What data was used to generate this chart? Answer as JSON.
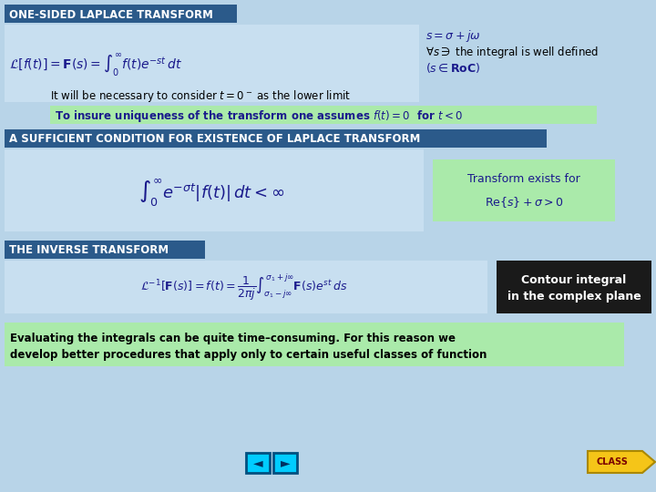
{
  "bg_color": "#b8d4e8",
  "slide_bg": "#b8d4e8",
  "section1_title": "ONE-SIDED LAPLACE TRANSFORM",
  "section1_title_bg": "#2b5a8a",
  "section1_title_color": "#ffffff",
  "section1_title_fontsize": 8.5,
  "formula1_latex": "$\\mathcal{L}[f(t)] = \\mathbf{F}(s) = \\int_0^{\\infty} f(t)e^{-st}\\, dt$",
  "formula1_box_bg": "#c8dff0",
  "formula1_side_line1": "$s = \\sigma + j\\omega$",
  "formula1_side_line2": "$\\forall s \\ni$ the integral is well defined",
  "formula1_side_line3": "$(s \\in \\mathbf{RoC})$",
  "note1": "It will be necessary to consider $t = 0^-$ as the lower limit",
  "note2_bg": "#aaeaaa",
  "note2_text": "To insure uniqueness of the transform one assumes $f(t) = 0$  for $t < 0$",
  "section2_title": "A SUFFICIENT CONDITION FOR EXISTENCE OF LAPLACE TRANSFORM",
  "section2_title_bg": "#2b5a8a",
  "section2_title_color": "#ffffff",
  "section2_title_fontsize": 8.5,
  "formula2_latex": "$\\int_0^{\\infty} e^{-\\sigma t}|f(t)|\\, dt < \\infty$",
  "formula2_box_bg": "#c8dff0",
  "formula2_side_bg": "#aaeaaa",
  "formula2_side_line1": "Transform exists for",
  "formula2_side_line2": "$\\mathrm{Re}\\{s\\}+\\sigma>0$",
  "section3_title": "THE INVERSE TRANSFORM",
  "section3_title_bg": "#2b5a8a",
  "section3_title_color": "#ffffff",
  "section3_title_fontsize": 8.5,
  "formula3_latex": "$\\mathcal{L}^{-1}[\\mathbf{F}(s)] = f(t) = \\dfrac{1}{2\\pi j}\\int_{\\sigma_1-j\\infty}^{\\sigma_1+j\\infty} \\mathbf{F}(s)e^{st}\\, ds$",
  "formula3_box_bg": "#c8dff0",
  "formula3_side_bg": "#1a1a1a",
  "formula3_side_line1": "Contour integral",
  "formula3_side_line2": "in the complex plane",
  "bottom_note_bg": "#aaeaaa",
  "bottom_note_line1": "Evaluating the integrals can be quite time–consuming. For this reason we",
  "bottom_note_line2": "develop better procedures that apply only to certain useful classes of function",
  "nav_back_color": "#00ccff",
  "nav_fwd_color": "#00ccff",
  "class_btn_bg": "#f5c518",
  "class_btn_text": "CLASS"
}
